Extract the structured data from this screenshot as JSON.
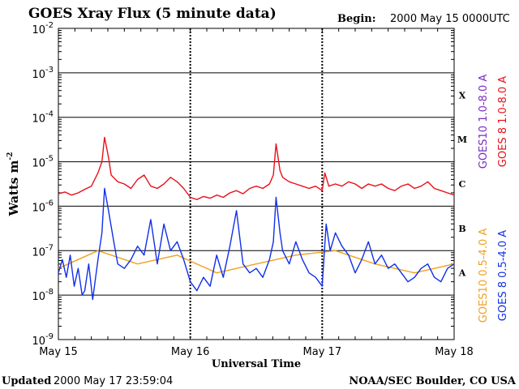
{
  "chart_data": {
    "type": "line",
    "title": "GOES Xray Flux (5 minute data)",
    "begin_label": "Begin:",
    "begin_value": "2000 May 15 0000UTC",
    "xlabel": "Universal Time",
    "ylabel_main": "Watts m",
    "ylabel_exp": "-2",
    "x_range_days": [
      0,
      3
    ],
    "x_ticks": [
      {
        "day": 0,
        "label": "May 15"
      },
      {
        "day": 1,
        "label": "May 16"
      },
      {
        "day": 2,
        "label": "May 17"
      },
      {
        "day": 3,
        "label": "May 18"
      }
    ],
    "y_scale": "log",
    "ylim_exp": [
      -9,
      -2
    ],
    "y_ticks": [
      {
        "exp": -2,
        "label": "-2"
      },
      {
        "exp": -3,
        "label": "-3"
      },
      {
        "exp": -4,
        "label": "-4"
      },
      {
        "exp": -5,
        "label": "-5"
      },
      {
        "exp": -6,
        "label": "-6"
      },
      {
        "exp": -7,
        "label": "-7"
      },
      {
        "exp": -8,
        "label": "-8"
      },
      {
        "exp": -9,
        "label": "-9"
      }
    ],
    "y_tick_base": "10",
    "flare_classes": [
      {
        "label": "X",
        "exp": -3.5
      },
      {
        "label": "M",
        "exp": -4.5
      },
      {
        "label": "C",
        "exp": -5.5
      },
      {
        "label": "B",
        "exp": -6.5
      },
      {
        "label": "A",
        "exp": -7.5
      }
    ],
    "legend": [
      {
        "name": "GOES10 1.0-8.0 A",
        "color": "#7a2bc4"
      },
      {
        "name": "GOES 8 1.0-8.0 A",
        "color": "#e8101a"
      },
      {
        "name": "GOES10 0.5-4.0 A",
        "color": "#f0a020"
      },
      {
        "name": "GOES 8 0.5-4.0 A",
        "color": "#1030e8"
      }
    ],
    "series": [
      {
        "name": "GOES 8 1.0-8.0 A",
        "color": "#e8101a",
        "x_days": [
          0.0,
          0.05,
          0.1,
          0.15,
          0.2,
          0.25,
          0.3,
          0.33,
          0.35,
          0.38,
          0.4,
          0.45,
          0.5,
          0.55,
          0.6,
          0.65,
          0.7,
          0.75,
          0.8,
          0.85,
          0.9,
          0.95,
          1.0,
          1.05,
          1.1,
          1.15,
          1.2,
          1.25,
          1.3,
          1.35,
          1.4,
          1.45,
          1.5,
          1.55,
          1.6,
          1.63,
          1.65,
          1.68,
          1.7,
          1.75,
          1.8,
          1.85,
          1.9,
          1.95,
          2.0,
          2.02,
          2.05,
          2.1,
          2.15,
          2.2,
          2.25,
          2.3,
          2.35,
          2.4,
          2.45,
          2.5,
          2.55,
          2.6,
          2.65,
          2.7,
          2.75,
          2.8,
          2.85,
          2.9,
          2.95,
          3.0
        ],
        "log10_values": [
          -5.72,
          -5.68,
          -5.75,
          -5.7,
          -5.62,
          -5.55,
          -5.25,
          -5.0,
          -4.45,
          -4.9,
          -5.3,
          -5.45,
          -5.5,
          -5.6,
          -5.4,
          -5.3,
          -5.55,
          -5.6,
          -5.5,
          -5.35,
          -5.45,
          -5.6,
          -5.8,
          -5.85,
          -5.78,
          -5.82,
          -5.75,
          -5.8,
          -5.7,
          -5.65,
          -5.72,
          -5.6,
          -5.55,
          -5.6,
          -5.5,
          -5.3,
          -4.6,
          -5.2,
          -5.35,
          -5.45,
          -5.5,
          -5.55,
          -5.6,
          -5.55,
          -5.65,
          -5.25,
          -5.55,
          -5.5,
          -5.55,
          -5.45,
          -5.5,
          -5.6,
          -5.5,
          -5.55,
          -5.5,
          -5.6,
          -5.65,
          -5.55,
          -5.5,
          -5.6,
          -5.55,
          -5.45,
          -5.6,
          -5.65,
          -5.7,
          -5.75
        ]
      },
      {
        "name": "GOES 8 0.5-4.0 A",
        "color": "#1030e8",
        "x_days": [
          0.0,
          0.03,
          0.06,
          0.09,
          0.12,
          0.15,
          0.18,
          0.2,
          0.23,
          0.26,
          0.3,
          0.33,
          0.35,
          0.38,
          0.42,
          0.45,
          0.5,
          0.55,
          0.6,
          0.65,
          0.7,
          0.75,
          0.8,
          0.85,
          0.9,
          0.95,
          1.0,
          1.05,
          1.1,
          1.15,
          1.2,
          1.25,
          1.3,
          1.35,
          1.4,
          1.45,
          1.5,
          1.55,
          1.6,
          1.63,
          1.65,
          1.68,
          1.7,
          1.75,
          1.8,
          1.85,
          1.9,
          1.95,
          2.0,
          2.03,
          2.06,
          2.1,
          2.15,
          2.2,
          2.25,
          2.3,
          2.35,
          2.4,
          2.45,
          2.5,
          2.55,
          2.6,
          2.65,
          2.7,
          2.75,
          2.8,
          2.85,
          2.9,
          2.95,
          3.0
        ],
        "log10_values": [
          -7.5,
          -7.2,
          -7.6,
          -7.1,
          -7.8,
          -7.4,
          -8.0,
          -7.9,
          -7.3,
          -8.1,
          -7.2,
          -6.6,
          -5.6,
          -6.1,
          -6.8,
          -7.3,
          -7.4,
          -7.2,
          -6.9,
          -7.1,
          -6.3,
          -7.3,
          -6.4,
          -7.0,
          -6.8,
          -7.2,
          -7.7,
          -7.9,
          -7.6,
          -7.8,
          -7.1,
          -7.6,
          -6.9,
          -6.1,
          -7.3,
          -7.5,
          -7.4,
          -7.6,
          -7.2,
          -6.8,
          -5.8,
          -6.6,
          -7.0,
          -7.3,
          -6.8,
          -7.2,
          -7.5,
          -7.6,
          -7.8,
          -6.4,
          -7.0,
          -6.6,
          -6.9,
          -7.1,
          -7.5,
          -7.2,
          -6.8,
          -7.3,
          -7.1,
          -7.4,
          -7.3,
          -7.5,
          -7.7,
          -7.6,
          -7.4,
          -7.3,
          -7.6,
          -7.7,
          -7.4,
          -7.3
        ]
      },
      {
        "name": "GOES10 0.5-4.0 A",
        "color": "#f0a020",
        "x_days": [
          0.0,
          0.3,
          0.6,
          0.9,
          1.2,
          1.5,
          1.8,
          2.1,
          2.4,
          2.7,
          3.0
        ],
        "log10_values": [
          -7.4,
          -7.0,
          -7.3,
          -7.1,
          -7.5,
          -7.3,
          -7.1,
          -7.0,
          -7.3,
          -7.5,
          -7.3
        ]
      }
    ],
    "footer_left_label": "Updated",
    "footer_left_value": "2000 May 17 23:59:04",
    "footer_right": "NOAA/SEC Boulder, CO USA"
  }
}
